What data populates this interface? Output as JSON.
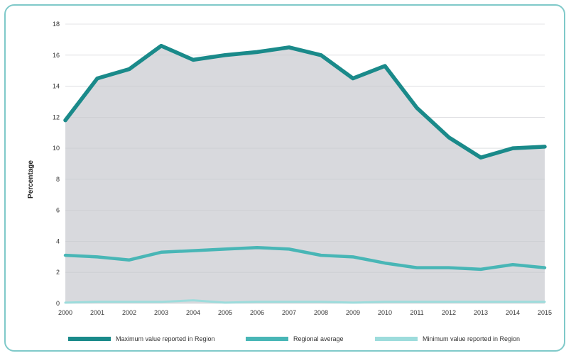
{
  "chart_data": {
    "type": "area",
    "ylabel": "Percentage",
    "xlabel": "",
    "title": "",
    "ylim": [
      0,
      18
    ],
    "yticks": [
      0,
      2,
      4,
      6,
      8,
      10,
      12,
      14,
      16,
      18
    ],
    "categories": [
      "2000",
      "2001",
      "2002",
      "2003",
      "2004",
      "2005",
      "2006",
      "2007",
      "2008",
      "2009",
      "2010",
      "2011",
      "2012",
      "2013",
      "2014",
      "2015"
    ],
    "grid": true,
    "legend_position": "bottom",
    "series": [
      {
        "name": "Maximum value reported in Region",
        "color": "#1a8a8a",
        "values": [
          11.8,
          14.5,
          15.1,
          16.6,
          15.7,
          16.0,
          16.2,
          16.5,
          16.0,
          14.5,
          15.3,
          12.6,
          10.7,
          9.4,
          10.0,
          10.1
        ]
      },
      {
        "name": "Regional average",
        "color": "#48b6b6",
        "values": [
          3.1,
          3.0,
          2.8,
          3.3,
          3.4,
          3.5,
          3.6,
          3.5,
          3.1,
          3.0,
          2.6,
          2.3,
          2.3,
          2.2,
          2.5,
          2.3
        ]
      },
      {
        "name": "Minimum value reported in Region",
        "color": "#9ddcdc",
        "values": [
          0.05,
          0.1,
          0.1,
          0.1,
          0.2,
          0.05,
          0.1,
          0.1,
          0.1,
          0.05,
          0.1,
          0.1,
          0.1,
          0.1,
          0.1,
          0.1
        ]
      }
    ],
    "area_fill": "#d8d9dd",
    "grid_color": "#ffffff"
  }
}
